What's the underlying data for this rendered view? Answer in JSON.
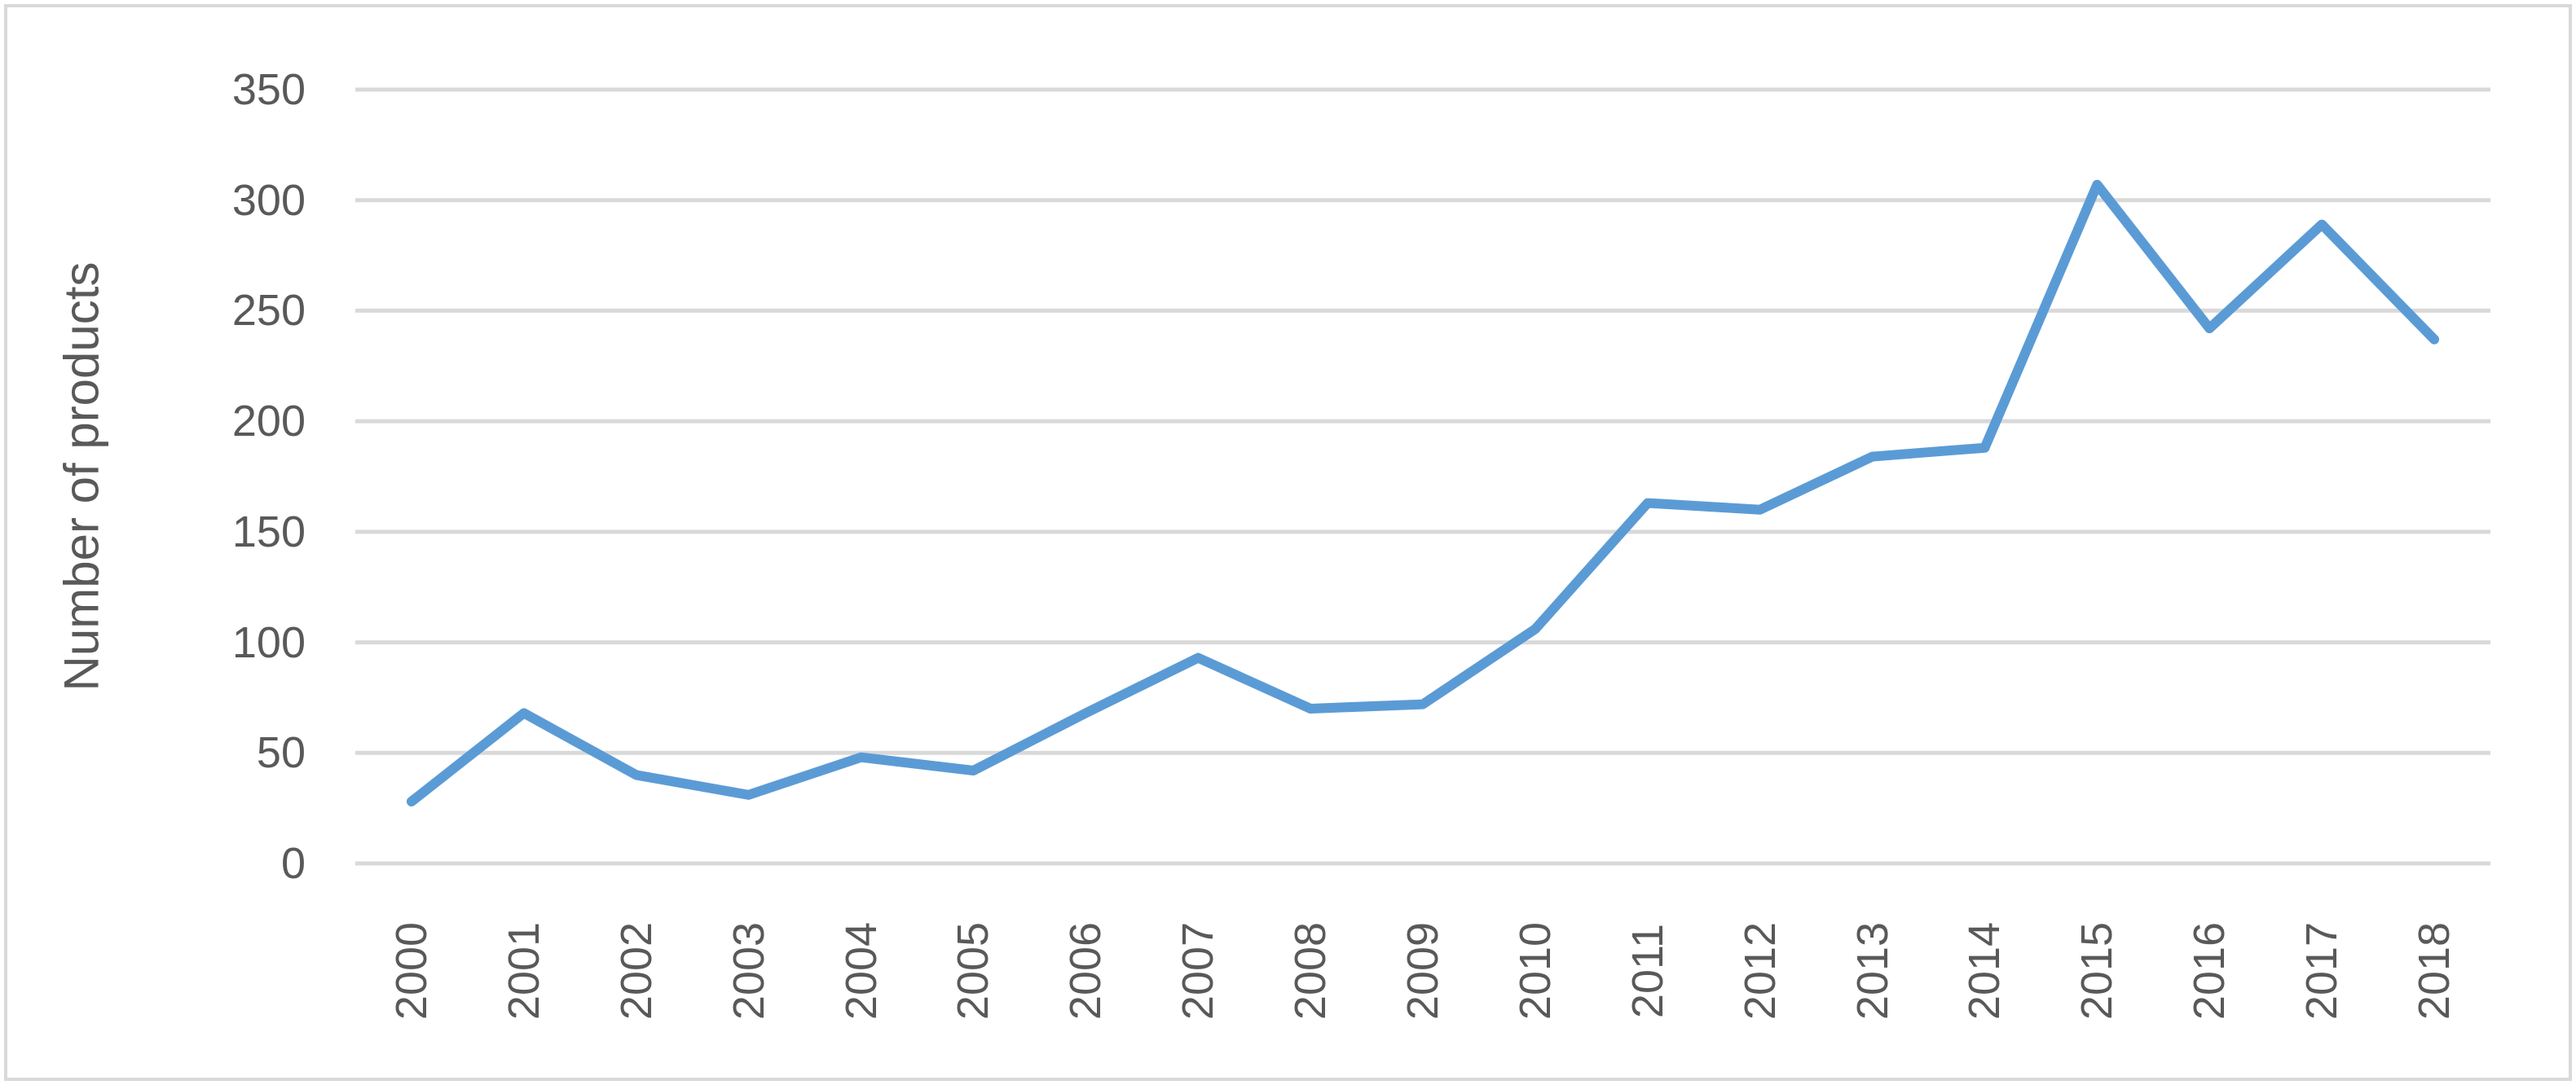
{
  "figure": {
    "background": "#FFFFFF",
    "border_color": "#D9D9D9"
  },
  "chart_data": {
    "type": "line",
    "title": "",
    "xlabel": "",
    "ylabel": "Number of products",
    "categories": [
      "2000",
      "2001",
      "2002",
      "2003",
      "2004",
      "2005",
      "2006",
      "2007",
      "2008",
      "2009",
      "2010",
      "2011",
      "2012",
      "2013",
      "2014",
      "2015",
      "2016",
      "2017",
      "2018"
    ],
    "series": [
      {
        "name": "Number of products",
        "values": [
          28,
          68,
          40,
          31,
          48,
          42,
          68,
          93,
          70,
          72,
          106,
          163,
          160,
          184,
          188,
          307,
          242,
          289,
          237
        ],
        "color": "#5B9BD5"
      }
    ],
    "ylim": [
      0,
      350
    ],
    "ytick_step": 50,
    "yticks": [
      "0",
      "50",
      "100",
      "150",
      "200",
      "250",
      "300",
      "350"
    ],
    "grid": {
      "horizontal": true,
      "vertical": false,
      "color": "#D9D9D9"
    },
    "legend": "none",
    "x_tick_rotation_deg": -90,
    "tick_label_color": "#595959",
    "axis_title_color": "#595959"
  }
}
